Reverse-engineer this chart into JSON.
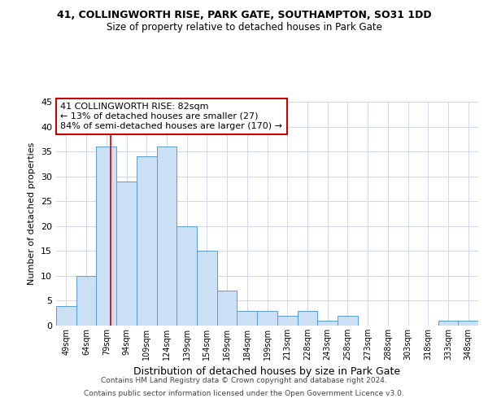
{
  "title": "41, COLLINGWORTH RISE, PARK GATE, SOUTHAMPTON, SO31 1DD",
  "subtitle": "Size of property relative to detached houses in Park Gate",
  "xlabel": "Distribution of detached houses by size in Park Gate",
  "ylabel": "Number of detached properties",
  "bins": [
    "49sqm",
    "64sqm",
    "79sqm",
    "94sqm",
    "109sqm",
    "124sqm",
    "139sqm",
    "154sqm",
    "169sqm",
    "184sqm",
    "199sqm",
    "213sqm",
    "228sqm",
    "243sqm",
    "258sqm",
    "273sqm",
    "288sqm",
    "303sqm",
    "318sqm",
    "333sqm",
    "348sqm"
  ],
  "values": [
    4,
    10,
    36,
    29,
    34,
    36,
    20,
    15,
    7,
    3,
    3,
    2,
    3,
    1,
    2,
    0,
    0,
    0,
    0,
    1,
    1
  ],
  "bar_color": "#cce0f5",
  "bar_edge_color": "#5b9bd5",
  "ylim": [
    0,
    45
  ],
  "yticks": [
    0,
    5,
    10,
    15,
    20,
    25,
    30,
    35,
    40,
    45
  ],
  "property_line_color": "#cc0000",
  "annotation_text": "41 COLLINGWORTH RISE: 82sqm\n← 13% of detached houses are smaller (27)\n84% of semi-detached houses are larger (170) →",
  "annotation_box_color": "#cc0000",
  "footer_line1": "Contains HM Land Registry data © Crown copyright and database right 2024.",
  "footer_line2": "Contains public sector information licensed under the Open Government Licence v3.0.",
  "bg_color": "#ffffff",
  "grid_color": "#d0d8e8"
}
